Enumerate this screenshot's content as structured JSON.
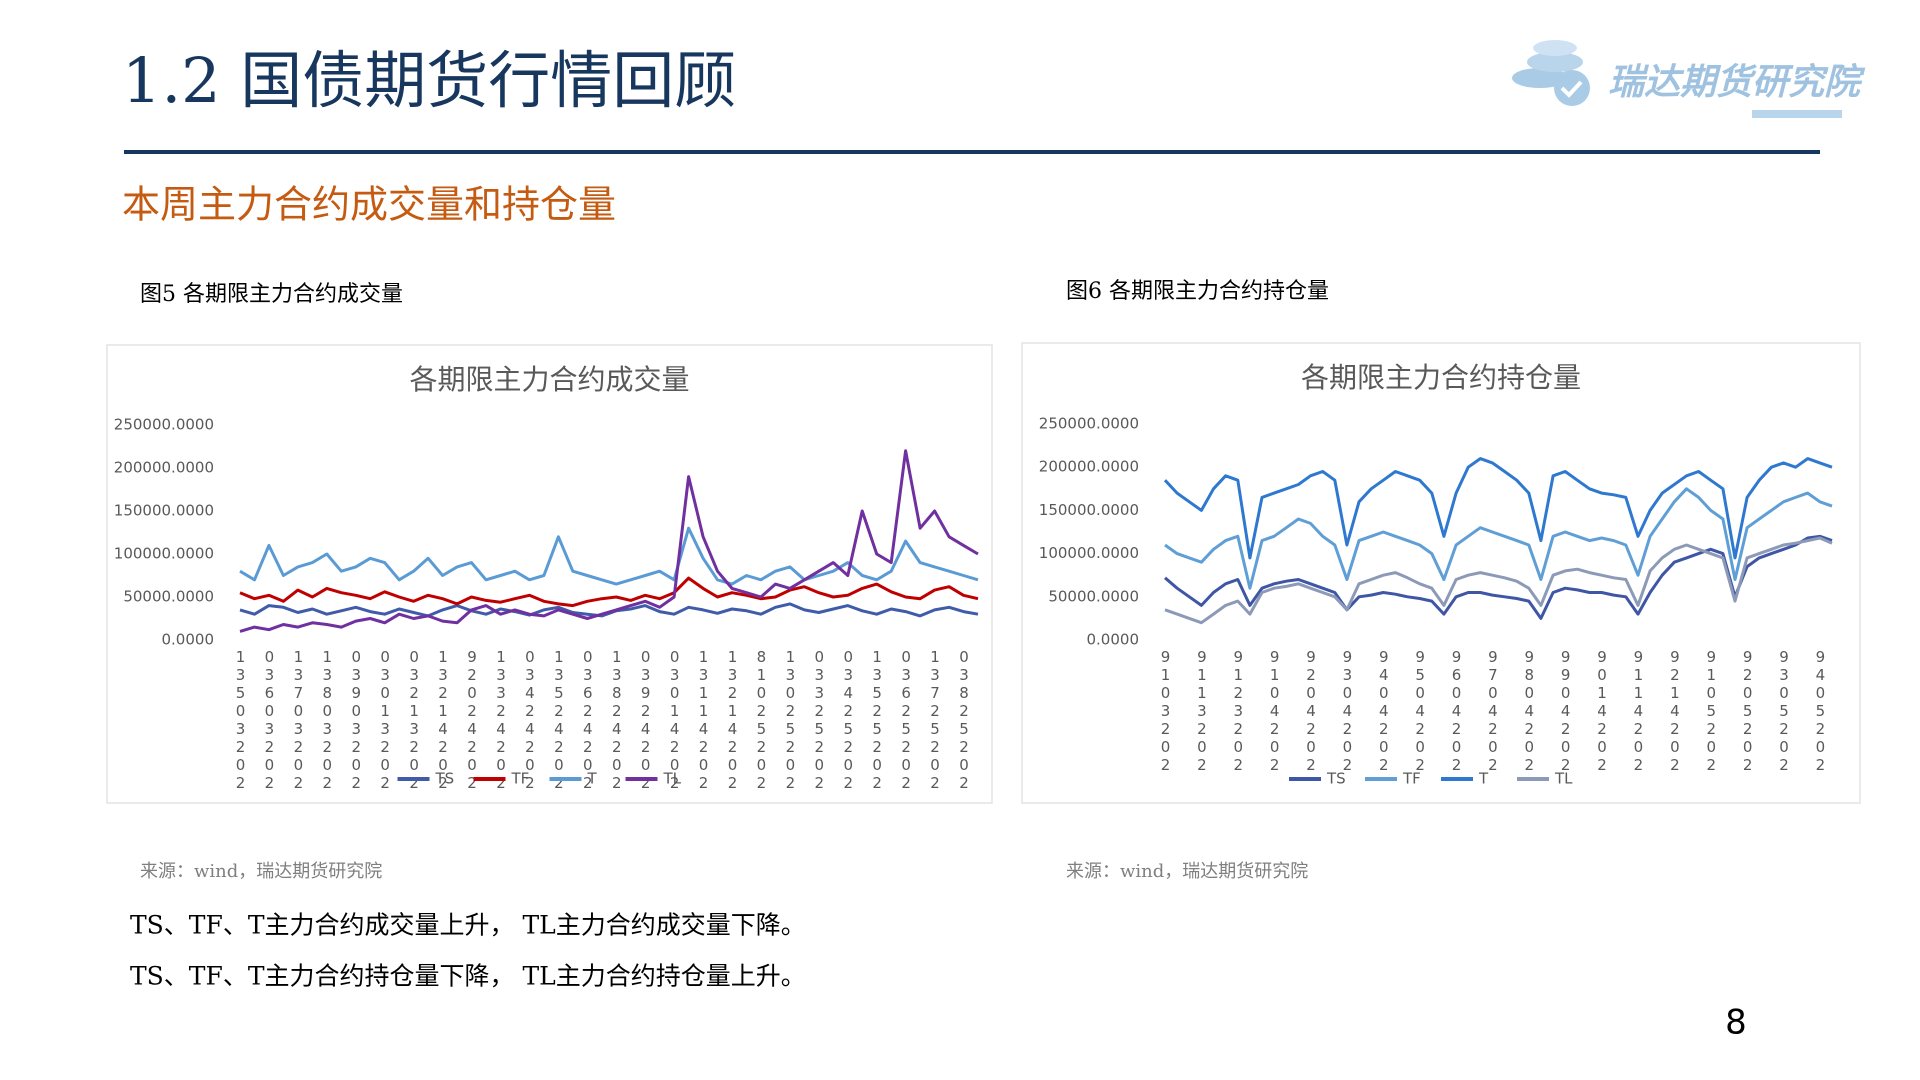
{
  "header": {
    "title": "1.2 国债期货行情回顾",
    "logo_text": "瑞达期货研究院"
  },
  "subtitle": "本周主力合约成交量和持仓量",
  "chart_data": [
    {
      "type": "line",
      "caption": "图5 各期限主力合约成交量",
      "title": "各期限主力合约成交量",
      "source": "来源：wind，瑞达期货研究院",
      "categories": [
        "13503202",
        null,
        "03603202",
        null,
        "13703202",
        null,
        "13803202",
        null,
        "03903202",
        null,
        "03013202",
        null,
        "03213202",
        null,
        "13214202",
        null,
        "92024202",
        null,
        "13324202",
        null,
        "03424202",
        null,
        "13524202",
        null,
        "03624202",
        null,
        "13824202",
        null,
        "03924202",
        null,
        "03014202",
        null,
        "13114202",
        null,
        "13214202",
        null,
        "81025202",
        null,
        "13025202",
        null,
        "03325202",
        null,
        "03425202",
        null,
        "13525202",
        null,
        "03625202",
        null,
        "13725202",
        null,
        "03825202",
        null
      ],
      "ylim": [
        0,
        250000
      ],
      "yticks": [
        {
          "value": 0,
          "label": "0.0000"
        },
        {
          "value": 50000,
          "label": "50000.0000"
        },
        {
          "value": 100000,
          "label": "100000.0000"
        },
        {
          "value": 150000,
          "label": "150000.0000"
        },
        {
          "value": 200000,
          "label": "200000.0000"
        },
        {
          "value": 250000,
          "label": "250000.0000"
        }
      ],
      "grid": false,
      "series": [
        {
          "name": "TS",
          "color": "#3f5ba9",
          "values": [
            35000,
            30000,
            40000,
            38000,
            32000,
            36000,
            30000,
            34000,
            38000,
            33000,
            30000,
            36000,
            32000,
            28000,
            35000,
            40000,
            34000,
            30000,
            36000,
            33000,
            29000,
            35000,
            38000,
            32000,
            30000,
            28000,
            34000,
            36000,
            40000,
            33000,
            30000,
            38000,
            35000,
            31000,
            36000,
            34000,
            30000,
            38000,
            42000,
            35000,
            32000,
            36000,
            40000,
            34000,
            30000,
            36000,
            33000,
            28000,
            35000,
            38000,
            33000,
            30000
          ]
        },
        {
          "name": "TF",
          "color": "#c00000",
          "values": [
            55000,
            48000,
            52000,
            45000,
            58000,
            50000,
            60000,
            55000,
            52000,
            48000,
            56000,
            50000,
            45000,
            52000,
            48000,
            42000,
            50000,
            46000,
            44000,
            48000,
            52000,
            45000,
            42000,
            40000,
            45000,
            48000,
            50000,
            46000,
            52000,
            48000,
            55000,
            72000,
            60000,
            50000,
            55000,
            52000,
            48000,
            50000,
            58000,
            62000,
            55000,
            50000,
            52000,
            60000,
            65000,
            56000,
            50000,
            48000,
            58000,
            62000,
            52000,
            48000
          ]
        },
        {
          "name": "T",
          "color": "#5b9bd5",
          "values": [
            80000,
            70000,
            110000,
            75000,
            85000,
            90000,
            100000,
            80000,
            85000,
            95000,
            90000,
            70000,
            80000,
            95000,
            75000,
            85000,
            90000,
            70000,
            75000,
            80000,
            70000,
            75000,
            120000,
            80000,
            75000,
            70000,
            65000,
            70000,
            75000,
            80000,
            70000,
            130000,
            95000,
            70000,
            65000,
            75000,
            70000,
            80000,
            85000,
            70000,
            75000,
            80000,
            90000,
            75000,
            70000,
            80000,
            115000,
            90000,
            85000,
            80000,
            75000,
            70000
          ]
        },
        {
          "name": "TL",
          "color": "#7030a0",
          "values": [
            10000,
            15000,
            12000,
            18000,
            15000,
            20000,
            18000,
            15000,
            22000,
            25000,
            20000,
            30000,
            25000,
            28000,
            22000,
            20000,
            35000,
            40000,
            30000,
            35000,
            30000,
            28000,
            35000,
            30000,
            25000,
            30000,
            35000,
            40000,
            45000,
            38000,
            50000,
            190000,
            120000,
            80000,
            60000,
            55000,
            50000,
            65000,
            60000,
            70000,
            80000,
            90000,
            75000,
            150000,
            100000,
            90000,
            220000,
            130000,
            150000,
            120000,
            110000,
            100000
          ]
        }
      ]
    },
    {
      "type": "line",
      "caption": "图6 各期限主力合约持仓量",
      "title": "各期限主力合约持仓量",
      "source": "来源：wind，瑞达期货研究院",
      "categories": [
        "9103202",
        null,
        null,
        "9113202",
        null,
        null,
        "9123202",
        null,
        null,
        "9104202",
        null,
        null,
        "9204202",
        null,
        null,
        "9304202",
        null,
        null,
        "9404202",
        null,
        null,
        "9504202",
        null,
        null,
        "9604202",
        null,
        null,
        "9704202",
        null,
        null,
        "9804202",
        null,
        null,
        "9904202",
        null,
        null,
        "9014202",
        null,
        null,
        "9114202",
        null,
        null,
        "9214202",
        null,
        null,
        "9105202",
        null,
        null,
        "9205202",
        null,
        null,
        "9305202",
        null,
        null,
        "9405202",
        null
      ],
      "ylim": [
        0,
        250000
      ],
      "yticks": [
        {
          "value": 0,
          "label": "0.0000"
        },
        {
          "value": 50000,
          "label": "50000.0000"
        },
        {
          "value": 100000,
          "label": "100000.0000"
        },
        {
          "value": 150000,
          "label": "150000.0000"
        },
        {
          "value": 200000,
          "label": "200000.0000"
        },
        {
          "value": 250000,
          "label": "250000.0000"
        }
      ],
      "grid": false,
      "series": [
        {
          "name": "TS",
          "color": "#3f56a6",
          "values": [
            72000,
            60000,
            50000,
            40000,
            55000,
            65000,
            70000,
            40000,
            60000,
            65000,
            68000,
            70000,
            65000,
            60000,
            55000,
            35000,
            50000,
            52000,
            55000,
            53000,
            50000,
            48000,
            45000,
            30000,
            50000,
            55000,
            55000,
            52000,
            50000,
            48000,
            45000,
            25000,
            55000,
            60000,
            58000,
            55000,
            55000,
            52000,
            50000,
            30000,
            55000,
            75000,
            90000,
            95000,
            100000,
            105000,
            100000,
            50000,
            85000,
            95000,
            100000,
            105000,
            110000,
            118000,
            120000,
            115000
          ]
        },
        {
          "name": "TF",
          "color": "#5f9fd6",
          "values": [
            110000,
            100000,
            95000,
            90000,
            105000,
            115000,
            120000,
            60000,
            115000,
            120000,
            130000,
            140000,
            135000,
            120000,
            110000,
            70000,
            115000,
            120000,
            125000,
            120000,
            115000,
            110000,
            100000,
            70000,
            110000,
            120000,
            130000,
            125000,
            120000,
            115000,
            110000,
            70000,
            120000,
            125000,
            120000,
            115000,
            118000,
            115000,
            110000,
            75000,
            120000,
            140000,
            160000,
            175000,
            165000,
            150000,
            140000,
            70000,
            130000,
            140000,
            150000,
            160000,
            165000,
            170000,
            160000,
            155000
          ]
        },
        {
          "name": "T",
          "color": "#2e78cf",
          "values": [
            185000,
            170000,
            160000,
            150000,
            175000,
            190000,
            185000,
            95000,
            165000,
            170000,
            175000,
            180000,
            190000,
            195000,
            185000,
            110000,
            160000,
            175000,
            185000,
            195000,
            190000,
            185000,
            170000,
            120000,
            170000,
            200000,
            210000,
            205000,
            195000,
            185000,
            170000,
            115000,
            190000,
            195000,
            185000,
            175000,
            170000,
            168000,
            165000,
            120000,
            150000,
            170000,
            180000,
            190000,
            195000,
            185000,
            175000,
            95000,
            165000,
            185000,
            200000,
            205000,
            200000,
            210000,
            205000,
            200000
          ]
        },
        {
          "name": "TL",
          "color": "#8c9ab8",
          "values": [
            35000,
            30000,
            25000,
            20000,
            30000,
            40000,
            45000,
            30000,
            55000,
            60000,
            62000,
            65000,
            60000,
            55000,
            50000,
            35000,
            65000,
            70000,
            75000,
            78000,
            72000,
            65000,
            60000,
            40000,
            70000,
            75000,
            78000,
            75000,
            72000,
            68000,
            60000,
            40000,
            75000,
            80000,
            82000,
            78000,
            75000,
            72000,
            70000,
            40000,
            80000,
            95000,
            105000,
            110000,
            105000,
            100000,
            95000,
            45000,
            95000,
            100000,
            105000,
            110000,
            112000,
            115000,
            118000,
            112000
          ]
        }
      ]
    }
  ],
  "notes": [
    "TS、TF、T主力合约成交量上升， TL主力合约成交量下降。",
    "TS、TF、T主力合约持仓量下降， TL主力合约持仓量上升。"
  ],
  "page_number": "8"
}
